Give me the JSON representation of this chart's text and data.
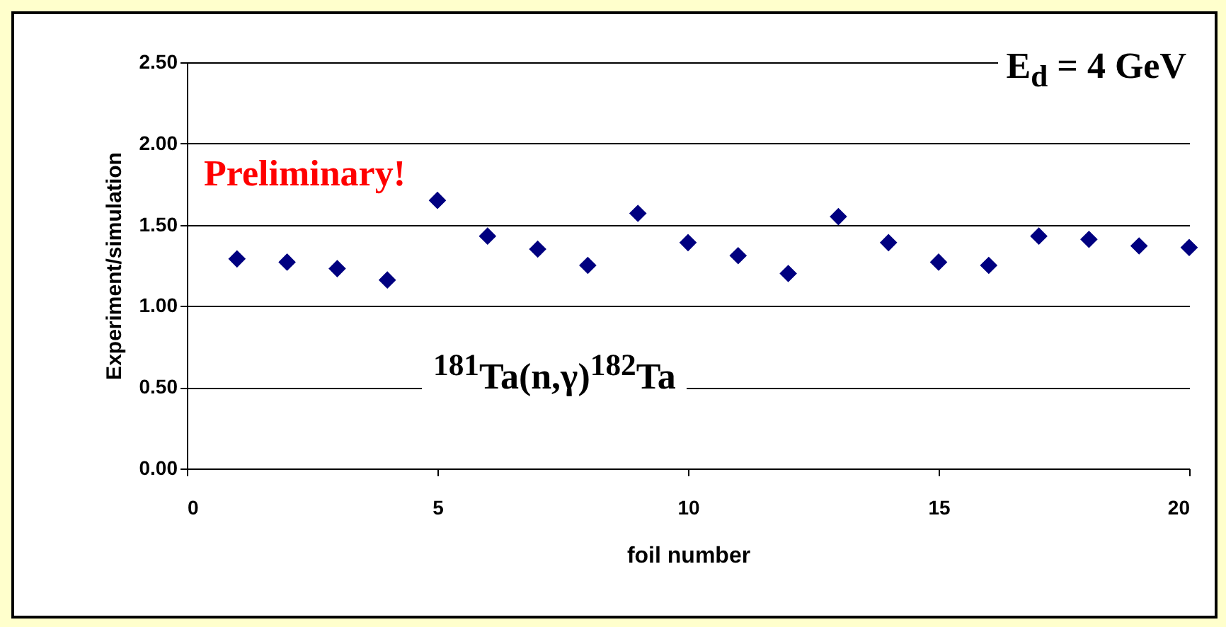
{
  "chart_data": {
    "type": "scatter",
    "title": "E$_{d}$ = 4 GeV",
    "xlabel": "foil number",
    "ylabel": "Experiment/simulation",
    "annotations": [
      "$^{181}$Ta(n,γ)$^{182}$Ta",
      "Preliminary!"
    ],
    "x": [
      1,
      2,
      3,
      4,
      5,
      6,
      7,
      8,
      9,
      10,
      11,
      12,
      13,
      14,
      15,
      16,
      17,
      18,
      19,
      20
    ],
    "series": [
      {
        "color": "#000080",
        "values": [
          1.29,
          1.27,
          1.23,
          1.16,
          1.65,
          1.43,
          1.35,
          1.25,
          1.57,
          1.39,
          1.31,
          1.2,
          1.55,
          1.39,
          1.27,
          1.25,
          1.43,
          1.41,
          1.37,
          1.36
        ]
      }
    ],
    "xlim": [
      0,
      20
    ],
    "xticks": [
      0,
      5,
      10,
      15,
      20
    ],
    "ylim": [
      0,
      2.5
    ],
    "yticks": [
      {
        "value": 0,
        "label": "0.00"
      },
      {
        "value": 0.5,
        "label": "0.50"
      },
      {
        "value": 1,
        "label": "1.00"
      },
      {
        "value": 1.5,
        "label": "1.50"
      },
      {
        "value": 2,
        "label": "2.00"
      },
      {
        "value": 2.5,
        "label": "2.50"
      }
    ],
    "grid": "y",
    "marker": "diamond"
  }
}
